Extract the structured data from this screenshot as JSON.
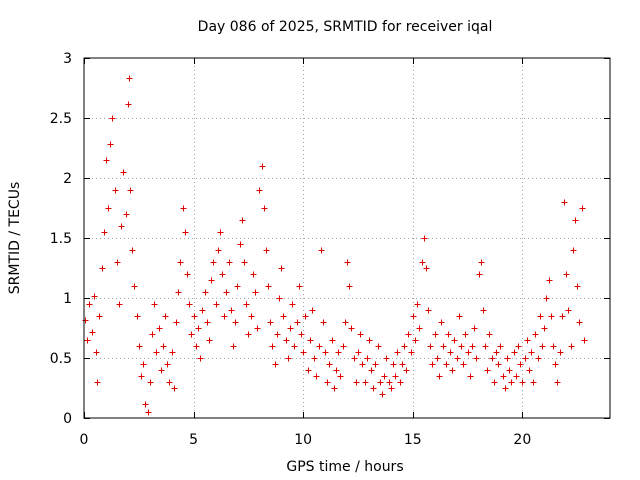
{
  "chart_data": {
    "type": "scatter",
    "title": "Day 086 of 2025, SRMTID for receiver iqal",
    "xlabel": "GPS time / hours",
    "ylabel": "SRMTID / TECUs",
    "xlim": [
      0,
      24
    ],
    "ylim": [
      0,
      3
    ],
    "xticks": [
      0,
      5,
      10,
      15,
      20
    ],
    "yticks": [
      0,
      0.5,
      1,
      1.5,
      2,
      2.5,
      3
    ],
    "xtick_labels": [
      "0",
      "5",
      "10",
      "15",
      "20"
    ],
    "ytick_labels": [
      "0",
      "0.5",
      "1",
      "1.5",
      "2",
      "2.5",
      "3"
    ],
    "grid": true,
    "marker": "+",
    "color": "#e00000",
    "series": [
      {
        "name": "SRMTID",
        "points": [
          [
            0.05,
            0.82
          ],
          [
            0.15,
            0.65
          ],
          [
            0.25,
            0.95
          ],
          [
            0.35,
            0.72
          ],
          [
            0.45,
            1.02
          ],
          [
            0.55,
            0.55
          ],
          [
            0.6,
            0.3
          ],
          [
            0.7,
            0.85
          ],
          [
            0.8,
            1.25
          ],
          [
            0.9,
            1.55
          ],
          [
            1.0,
            2.15
          ],
          [
            1.1,
            1.75
          ],
          [
            1.2,
            2.28
          ],
          [
            1.3,
            2.5
          ],
          [
            1.4,
            1.9
          ],
          [
            1.5,
            1.3
          ],
          [
            1.6,
            0.95
          ],
          [
            1.7,
            1.6
          ],
          [
            1.8,
            2.05
          ],
          [
            1.9,
            1.7
          ],
          [
            2.0,
            2.62
          ],
          [
            2.05,
            2.83
          ],
          [
            2.1,
            1.9
          ],
          [
            2.2,
            1.4
          ],
          [
            2.3,
            1.1
          ],
          [
            2.4,
            0.85
          ],
          [
            2.5,
            0.6
          ],
          [
            2.6,
            0.35
          ],
          [
            2.7,
            0.45
          ],
          [
            2.8,
            0.12
          ],
          [
            2.9,
            0.05
          ],
          [
            3.0,
            0.3
          ],
          [
            3.1,
            0.7
          ],
          [
            3.2,
            0.95
          ],
          [
            3.3,
            0.55
          ],
          [
            3.4,
            0.75
          ],
          [
            3.5,
            0.4
          ],
          [
            3.6,
            0.6
          ],
          [
            3.7,
            0.85
          ],
          [
            3.8,
            0.45
          ],
          [
            3.9,
            0.3
          ],
          [
            4.0,
            0.55
          ],
          [
            4.1,
            0.25
          ],
          [
            4.2,
            0.8
          ],
          [
            4.3,
            1.05
          ],
          [
            4.4,
            1.3
          ],
          [
            4.5,
            1.75
          ],
          [
            4.6,
            1.55
          ],
          [
            4.7,
            1.2
          ],
          [
            4.8,
            0.95
          ],
          [
            4.9,
            0.7
          ],
          [
            5.0,
            0.85
          ],
          [
            5.1,
            0.6
          ],
          [
            5.2,
            0.75
          ],
          [
            5.3,
            0.5
          ],
          [
            5.4,
            0.9
          ],
          [
            5.5,
            1.05
          ],
          [
            5.6,
            0.8
          ],
          [
            5.7,
            0.65
          ],
          [
            5.8,
            1.15
          ],
          [
            5.9,
            1.3
          ],
          [
            6.0,
            0.95
          ],
          [
            6.1,
            1.4
          ],
          [
            6.2,
            1.55
          ],
          [
            6.3,
            1.2
          ],
          [
            6.4,
            0.85
          ],
          [
            6.5,
            1.05
          ],
          [
            6.6,
            1.3
          ],
          [
            6.7,
            0.9
          ],
          [
            6.8,
            0.6
          ],
          [
            6.9,
            0.8
          ],
          [
            7.0,
            1.1
          ],
          [
            7.1,
            1.45
          ],
          [
            7.2,
            1.65
          ],
          [
            7.3,
            1.3
          ],
          [
            7.4,
            0.95
          ],
          [
            7.5,
            0.7
          ],
          [
            7.6,
            0.85
          ],
          [
            7.7,
            1.2
          ],
          [
            7.8,
            1.05
          ],
          [
            7.9,
            0.75
          ],
          [
            8.0,
            1.9
          ],
          [
            8.1,
            2.1
          ],
          [
            8.2,
            1.75
          ],
          [
            8.3,
            1.4
          ],
          [
            8.4,
            1.1
          ],
          [
            8.5,
            0.8
          ],
          [
            8.6,
            0.6
          ],
          [
            8.7,
            0.45
          ],
          [
            8.8,
            0.7
          ],
          [
            8.9,
            1.0
          ],
          [
            9.0,
            1.25
          ],
          [
            9.1,
            0.85
          ],
          [
            9.2,
            0.65
          ],
          [
            9.3,
            0.5
          ],
          [
            9.4,
            0.75
          ],
          [
            9.5,
            0.95
          ],
          [
            9.6,
            0.6
          ],
          [
            9.7,
            0.8
          ],
          [
            9.8,
            1.1
          ],
          [
            9.9,
            0.7
          ],
          [
            10.0,
            0.55
          ],
          [
            10.1,
            0.85
          ],
          [
            10.2,
            0.4
          ],
          [
            10.3,
            0.65
          ],
          [
            10.4,
            0.9
          ],
          [
            10.5,
            0.5
          ],
          [
            10.6,
            0.35
          ],
          [
            10.7,
            0.6
          ],
          [
            10.8,
            1.4
          ],
          [
            10.9,
            0.8
          ],
          [
            11.0,
            0.55
          ],
          [
            11.1,
            0.3
          ],
          [
            11.2,
            0.45
          ],
          [
            11.3,
            0.65
          ],
          [
            11.4,
            0.25
          ],
          [
            11.5,
            0.4
          ],
          [
            11.6,
            0.55
          ],
          [
            11.7,
            0.35
          ],
          [
            11.8,
            0.6
          ],
          [
            11.9,
            0.8
          ],
          [
            12.0,
            1.3
          ],
          [
            12.1,
            1.1
          ],
          [
            12.2,
            0.75
          ],
          [
            12.3,
            0.5
          ],
          [
            12.4,
            0.3
          ],
          [
            12.5,
            0.55
          ],
          [
            12.6,
            0.7
          ],
          [
            12.7,
            0.45
          ],
          [
            12.8,
            0.3
          ],
          [
            12.9,
            0.5
          ],
          [
            13.0,
            0.65
          ],
          [
            13.1,
            0.4
          ],
          [
            13.2,
            0.25
          ],
          [
            13.3,
            0.45
          ],
          [
            13.4,
            0.6
          ],
          [
            13.5,
            0.3
          ],
          [
            13.6,
            0.2
          ],
          [
            13.7,
            0.35
          ],
          [
            13.8,
            0.5
          ],
          [
            13.9,
            0.3
          ],
          [
            14.0,
            0.25
          ],
          [
            14.1,
            0.45
          ],
          [
            14.2,
            0.35
          ],
          [
            14.3,
            0.55
          ],
          [
            14.4,
            0.3
          ],
          [
            14.5,
            0.45
          ],
          [
            14.6,
            0.6
          ],
          [
            14.7,
            0.4
          ],
          [
            14.8,
            0.7
          ],
          [
            14.9,
            0.55
          ],
          [
            15.0,
            0.85
          ],
          [
            15.1,
            0.65
          ],
          [
            15.2,
            0.95
          ],
          [
            15.3,
            0.75
          ],
          [
            15.4,
            1.3
          ],
          [
            15.5,
            1.5
          ],
          [
            15.6,
            1.25
          ],
          [
            15.7,
            0.9
          ],
          [
            15.8,
            0.6
          ],
          [
            15.9,
            0.45
          ],
          [
            16.0,
            0.7
          ],
          [
            16.1,
            0.5
          ],
          [
            16.2,
            0.35
          ],
          [
            16.3,
            0.8
          ],
          [
            16.4,
            0.6
          ],
          [
            16.5,
            0.45
          ],
          [
            16.6,
            0.7
          ],
          [
            16.7,
            0.55
          ],
          [
            16.8,
            0.4
          ],
          [
            16.9,
            0.65
          ],
          [
            17.0,
            0.5
          ],
          [
            17.1,
            0.85
          ],
          [
            17.2,
            0.6
          ],
          [
            17.3,
            0.45
          ],
          [
            17.4,
            0.7
          ],
          [
            17.5,
            0.55
          ],
          [
            17.6,
            0.35
          ],
          [
            17.7,
            0.6
          ],
          [
            17.8,
            0.75
          ],
          [
            17.9,
            0.5
          ],
          [
            18.0,
            1.2
          ],
          [
            18.1,
            1.3
          ],
          [
            18.2,
            0.9
          ],
          [
            18.3,
            0.6
          ],
          [
            18.4,
            0.4
          ],
          [
            18.5,
            0.7
          ],
          [
            18.6,
            0.5
          ],
          [
            18.7,
            0.3
          ],
          [
            18.8,
            0.55
          ],
          [
            18.9,
            0.45
          ],
          [
            19.0,
            0.6
          ],
          [
            19.1,
            0.35
          ],
          [
            19.2,
            0.25
          ],
          [
            19.3,
            0.5
          ],
          [
            19.4,
            0.4
          ],
          [
            19.5,
            0.3
          ],
          [
            19.6,
            0.55
          ],
          [
            19.7,
            0.35
          ],
          [
            19.8,
            0.6
          ],
          [
            19.9,
            0.45
          ],
          [
            20.0,
            0.3
          ],
          [
            20.1,
            0.5
          ],
          [
            20.2,
            0.65
          ],
          [
            20.3,
            0.4
          ],
          [
            20.4,
            0.55
          ],
          [
            20.5,
            0.3
          ],
          [
            20.6,
            0.7
          ],
          [
            20.7,
            0.5
          ],
          [
            20.8,
            0.85
          ],
          [
            20.9,
            0.6
          ],
          [
            21.0,
            0.75
          ],
          [
            21.1,
            1.0
          ],
          [
            21.2,
            1.15
          ],
          [
            21.3,
            0.85
          ],
          [
            21.4,
            0.6
          ],
          [
            21.5,
            0.45
          ],
          [
            21.6,
            0.3
          ],
          [
            21.7,
            0.55
          ],
          [
            21.8,
            0.85
          ],
          [
            21.9,
            1.8
          ],
          [
            22.0,
            1.2
          ],
          [
            22.1,
            0.9
          ],
          [
            22.2,
            0.6
          ],
          [
            22.3,
            1.4
          ],
          [
            22.4,
            1.65
          ],
          [
            22.5,
            1.1
          ],
          [
            22.6,
            0.8
          ],
          [
            22.7,
            1.75
          ],
          [
            22.8,
            0.65
          ]
        ]
      }
    ]
  }
}
